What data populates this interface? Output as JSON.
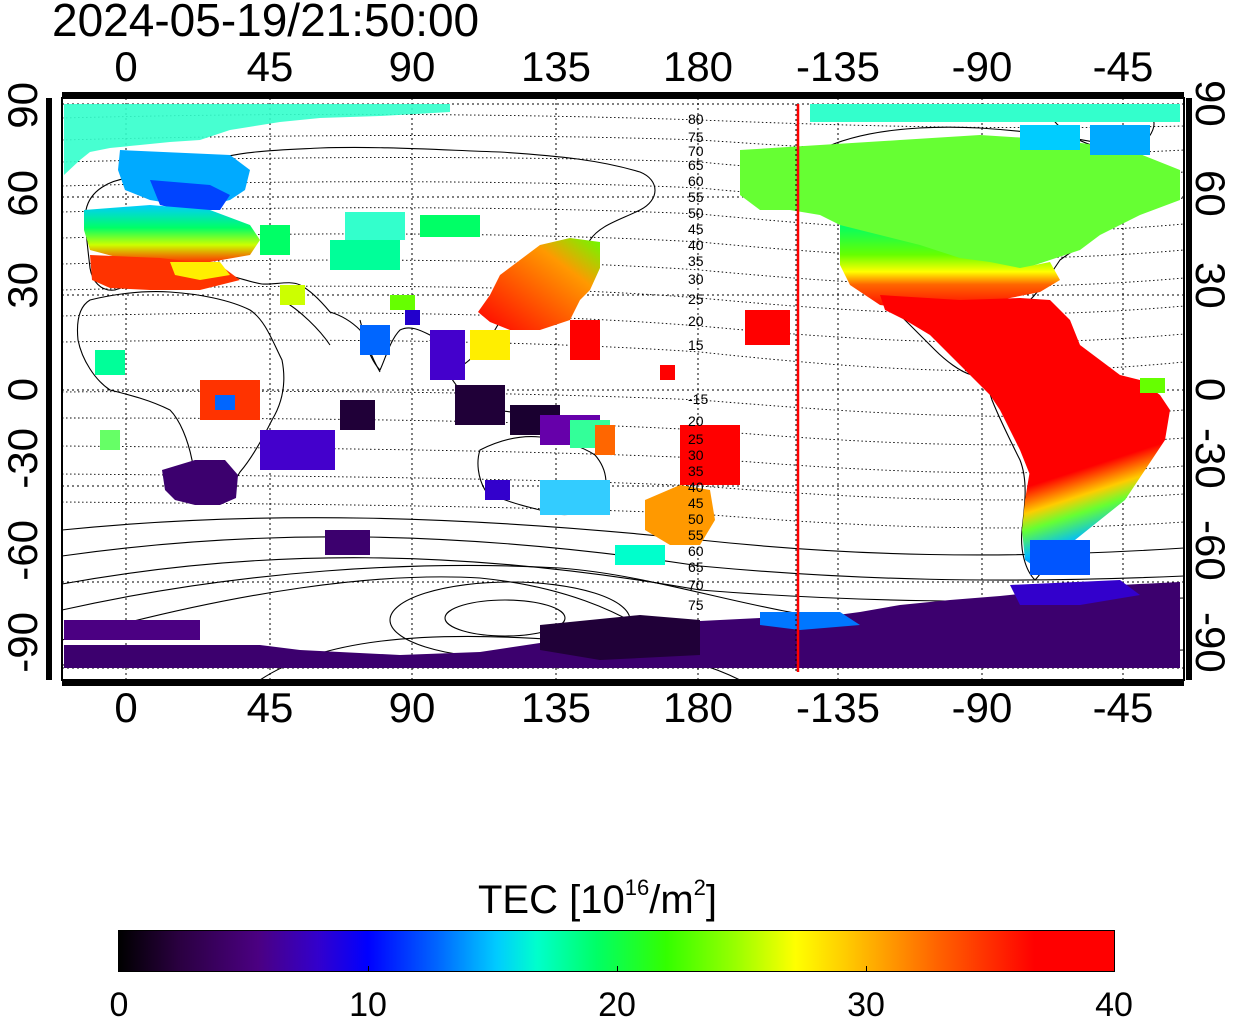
{
  "header": {
    "timestamp": "2024-05-19/21:50:00"
  },
  "axes": {
    "lon_ticks": [
      "0",
      "45",
      "90",
      "135",
      "180",
      "-135",
      "-90",
      "-45"
    ],
    "lat_ticks": [
      "90",
      "60",
      "30",
      "0",
      "-30",
      "-60",
      "-90"
    ],
    "mlat_labels_north": [
      "80",
      "75",
      "70",
      "65",
      "60",
      "55",
      "50",
      "45",
      "40",
      "35",
      "30",
      "25",
      "20",
      "15"
    ],
    "mlat_labels_south": [
      "-15",
      "20",
      "25",
      "30",
      "35",
      "40",
      "45",
      "50",
      "55",
      "60",
      "65",
      "70",
      "75"
    ]
  },
  "colorbar": {
    "title_main": "TEC  [10",
    "title_exp": "16",
    "title_mid": "/m",
    "title_exp2": "2",
    "title_end": "]",
    "ticks": [
      "0",
      "10",
      "20",
      "30",
      "40"
    ],
    "min": 0,
    "max": 40
  },
  "colors": {
    "terminator_line": "#ff0000",
    "frame": "#000000"
  }
}
